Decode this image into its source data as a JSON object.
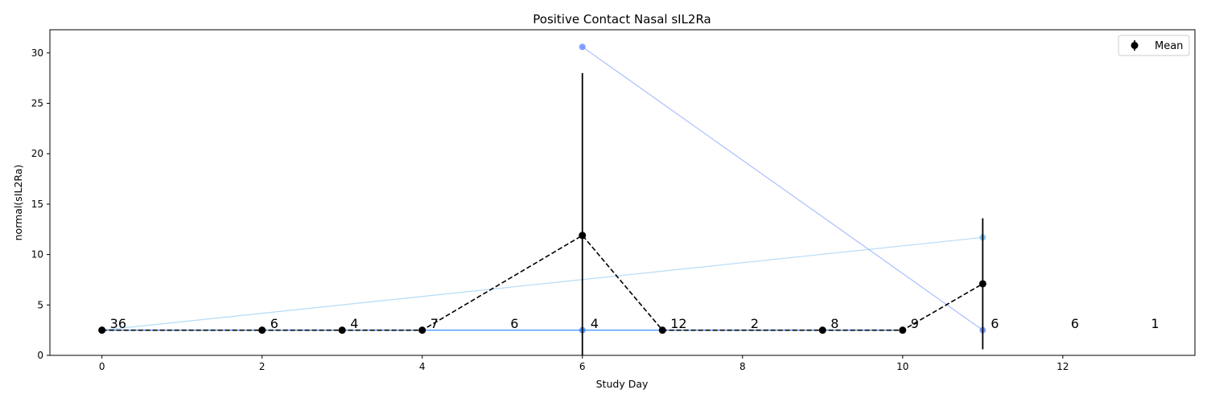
{
  "chart_data": {
    "type": "line",
    "title": "Positive Contact Nasal sIL2Ra",
    "xlabel": "Study Day",
    "ylabel": "normal(sIL2Ra)",
    "xlim": [
      -0.65,
      13.65
    ],
    "ylim": [
      0,
      32.3
    ],
    "xticks": [
      0,
      2,
      4,
      6,
      8,
      10,
      12
    ],
    "yticks": [
      0,
      5,
      10,
      15,
      20,
      25,
      30
    ],
    "grid": false,
    "legend": {
      "position": "top-right",
      "entries": [
        "Mean"
      ]
    },
    "subject_lines": [
      {
        "color": "#2a7fff",
        "opacity": 0.9,
        "points": [
          [
            0,
            2.5
          ],
          [
            2,
            2.5
          ],
          [
            3,
            2.5
          ],
          [
            4,
            2.5
          ],
          [
            6,
            2.5
          ],
          [
            7,
            2.5
          ],
          [
            9,
            2.5
          ],
          [
            10,
            2.5
          ]
        ]
      },
      {
        "color": "#5a7fff",
        "opacity": 0.5,
        "points": [
          [
            6,
            30.6
          ],
          [
            11,
            2.5
          ]
        ]
      },
      {
        "color": "#6ab8f0",
        "opacity": 0.5,
        "points": [
          [
            0,
            2.5
          ],
          [
            11,
            11.7
          ]
        ]
      }
    ],
    "mean_series": {
      "name": "Mean",
      "color": "#000000",
      "points": [
        {
          "x": 0,
          "y": 2.5,
          "err": 0
        },
        {
          "x": 2,
          "y": 2.5,
          "err": 0
        },
        {
          "x": 3,
          "y": 2.5,
          "err": 0
        },
        {
          "x": 4,
          "y": 2.5,
          "err": 0
        },
        {
          "x": 6,
          "y": 11.9,
          "err": 16.1
        },
        {
          "x": 7,
          "y": 2.5,
          "err": 0
        },
        {
          "x": 9,
          "y": 2.5,
          "err": 0
        },
        {
          "x": 10,
          "y": 2.5,
          "err": 0
        },
        {
          "x": 11,
          "y": 7.1,
          "err": 6.5
        }
      ]
    },
    "count_labels": [
      {
        "x": 0,
        "text": "36"
      },
      {
        "x": 2,
        "text": "6"
      },
      {
        "x": 3,
        "text": "4"
      },
      {
        "x": 4,
        "text": "7"
      },
      {
        "x": 5,
        "text": "6"
      },
      {
        "x": 6,
        "text": "4"
      },
      {
        "x": 7,
        "text": "12"
      },
      {
        "x": 8,
        "text": "2"
      },
      {
        "x": 9,
        "text": "8"
      },
      {
        "x": 10,
        "text": "9"
      },
      {
        "x": 11,
        "text": "6"
      },
      {
        "x": 12,
        "text": "6"
      },
      {
        "x": 13,
        "text": "1"
      }
    ],
    "count_label_y": 3.2
  }
}
